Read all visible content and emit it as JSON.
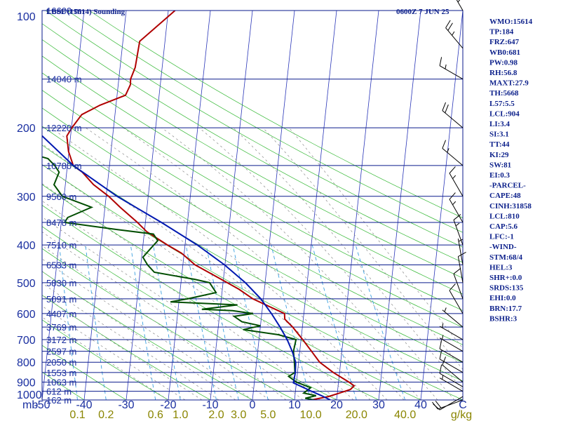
{
  "title": "LBSF (15614) Sounding",
  "valid": "0600Z  7 JUN 25",
  "colors": {
    "frame": "#0a1a8c",
    "isobar": "#0a1a8c",
    "isotherm": "#2a36b8",
    "dry_adiabat": "#33b833",
    "moist_adiabat": "#8a8a8a",
    "mixing_ratio": "#3aa0e0",
    "temperature": "#b00000",
    "dewpoint": "#004d00",
    "parcel": "#0018b0",
    "text": "#1a2fa0",
    "mix_label": "#8a8500",
    "barb": "#000000"
  },
  "axis_unit_label": "mb",
  "mix_unit_label": "g/kg",
  "chart_data": {
    "type": "line",
    "title": "LBSF (15614) Sounding",
    "subtitle": "0600Z  7 JUN 25",
    "xlabel": "",
    "ylabel": "mb",
    "xlim": [
      -50,
      50
    ],
    "ylim": [
      1000,
      100
    ],
    "y_scale": "log",
    "grid": true,
    "pressure_ticks": [
      "100",
      "200",
      "300",
      "400",
      "500",
      "600",
      "700",
      "800",
      "900",
      "1000"
    ],
    "temperature_ticks": [
      "-50",
      "-40",
      "-30",
      "-20",
      "-10",
      "0",
      "10",
      "20",
      "30",
      "40",
      "C"
    ],
    "mixing_ratio_ticks": [
      "0.1",
      "0.2",
      "0.6",
      "1.0",
      "2.0",
      "3.0",
      "5.0",
      "10.0",
      "20.0",
      "40.0",
      "g/kg"
    ],
    "height_labels": [
      {
        "p": 100,
        "label": "16600 m"
      },
      {
        "p": 150,
        "label": "14040 m"
      },
      {
        "p": 200,
        "label": "12220 m"
      },
      {
        "p": 250,
        "label": "10780 m"
      },
      {
        "p": 300,
        "label": "9560 m"
      },
      {
        "p": 350,
        "label": "8478 m"
      },
      {
        "p": 400,
        "label": "7510 m"
      },
      {
        "p": 450,
        "label": "6533 m"
      },
      {
        "p": 500,
        "label": "5830 m"
      },
      {
        "p": 550,
        "label": "5091 m"
      },
      {
        "p": 600,
        "label": "4407 m"
      },
      {
        "p": 650,
        "label": "3769 m"
      },
      {
        "p": 700,
        "label": "3172 m"
      },
      {
        "p": 750,
        "label": "2597 m"
      },
      {
        "p": 800,
        "label": "2050 m"
      },
      {
        "p": 850,
        "label": "1553 m"
      },
      {
        "p": 900,
        "label": "1063 m"
      },
      {
        "p": 950,
        "label": "612 m"
      },
      {
        "p": 1000,
        "label": "162 m"
      }
    ],
    "series": [
      {
        "key": "temperature",
        "points": [
          [
            1000,
            14.0
          ],
          [
            980,
            18.0
          ],
          [
            960,
            20.5
          ],
          [
            940,
            23.0
          ],
          [
            920,
            23.8
          ],
          [
            900,
            22.5
          ],
          [
            850,
            18.5
          ],
          [
            800,
            15.0
          ],
          [
            750,
            12.8
          ],
          [
            700,
            10.4
          ],
          [
            650,
            7.7
          ],
          [
            620,
            5.6
          ],
          [
            600,
            5.4
          ],
          [
            580,
            2.3
          ],
          [
            550,
            -2.5
          ],
          [
            520,
            -6.0
          ],
          [
            500,
            -9.0
          ],
          [
            480,
            -12.1
          ],
          [
            450,
            -17.1
          ],
          [
            420,
            -20.6
          ],
          [
            400,
            -24.2
          ],
          [
            370,
            -29.4
          ],
          [
            350,
            -31.9
          ],
          [
            320,
            -36.4
          ],
          [
            300,
            -39.4
          ],
          [
            280,
            -43.3
          ],
          [
            260,
            -46.3
          ],
          [
            250,
            -48.6
          ],
          [
            230,
            -50.1
          ],
          [
            210,
            -50.9
          ],
          [
            200,
            -49.9
          ],
          [
            185,
            -47.9
          ],
          [
            175,
            -43.8
          ],
          [
            165,
            -38.0
          ],
          [
            155,
            -37.1
          ],
          [
            150,
            -37.2
          ],
          [
            140,
            -36.4
          ],
          [
            120,
            -36.0
          ],
          [
            100,
            -28.4
          ]
        ]
      },
      {
        "key": "dewpoint",
        "points": [
          [
            1000,
            14.7
          ],
          [
            990,
            12.5
          ],
          [
            975,
            15.0
          ],
          [
            960,
            12.0
          ],
          [
            930,
            13.5
          ],
          [
            900,
            10.0
          ],
          [
            870,
            8.0
          ],
          [
            850,
            9.4
          ],
          [
            800,
            9.0
          ],
          [
            750,
            8.5
          ],
          [
            700,
            8.8
          ],
          [
            680,
            4.5
          ],
          [
            660,
            -4.0
          ],
          [
            645,
            0.0
          ],
          [
            630,
            -4.5
          ],
          [
            610,
            -6.5
          ],
          [
            600,
            -2.1
          ],
          [
            590,
            -7.0
          ],
          [
            585,
            -14.3
          ],
          [
            570,
            -6.0
          ],
          [
            560,
            -22.0
          ],
          [
            550,
            -18.0
          ],
          [
            530,
            -11.4
          ],
          [
            500,
            -13.2
          ],
          [
            490,
            -16.8
          ],
          [
            470,
            -26.6
          ],
          [
            450,
            -28.4
          ],
          [
            430,
            -29.7
          ],
          [
            410,
            -28.2
          ],
          [
            390,
            -26.6
          ],
          [
            375,
            -27.8
          ],
          [
            365,
            -36.6
          ],
          [
            350,
            -49.2
          ],
          [
            340,
            -48.6
          ],
          [
            320,
            -43.2
          ],
          [
            300,
            -50.4
          ],
          [
            280,
            -52.7
          ],
          [
            260,
            -51.8
          ],
          [
            250,
            -53.0
          ],
          [
            240,
            -54.8
          ],
          [
            225,
            -64.3
          ],
          [
            210,
            -59.9
          ],
          [
            200,
            -59.0
          ],
          [
            190,
            -62.3
          ],
          [
            180,
            -63.2
          ],
          [
            170,
            -66.1
          ],
          [
            160,
            -68.3
          ],
          [
            145,
            -65.0
          ],
          [
            130,
            -65.0
          ],
          [
            115,
            -67.0
          ],
          [
            100,
            -71.3
          ]
        ]
      },
      {
        "key": "parcel",
        "points": [
          [
            1000,
            18.5
          ],
          [
            975,
            16.3
          ],
          [
            950,
            13.8
          ],
          [
            925,
            11.4
          ],
          [
            904,
            9.3
          ],
          [
            850,
            9.5
          ],
          [
            800,
            9.3
          ],
          [
            750,
            8.2
          ],
          [
            700,
            6.7
          ],
          [
            650,
            4.7
          ],
          [
            600,
            2.3
          ],
          [
            550,
            -0.6
          ],
          [
            500,
            -4.7
          ],
          [
            450,
            -10.1
          ],
          [
            400,
            -17.1
          ],
          [
            350,
            -26.2
          ],
          [
            300,
            -37.4
          ],
          [
            250,
            -48.6
          ],
          [
            200,
            -59.0
          ],
          [
            150,
            -67.8
          ],
          [
            100,
            -73.9
          ]
        ]
      }
    ]
  },
  "wind_barbs": [
    {
      "p": 1000,
      "dir": 250,
      "spd": 20
    },
    {
      "p": 980,
      "dir": 240,
      "spd": 10
    },
    {
      "p": 950,
      "dir": 300,
      "spd": 5
    },
    {
      "p": 925,
      "dir": 300,
      "spd": 10
    },
    {
      "p": 900,
      "dir": 310,
      "spd": 10
    },
    {
      "p": 850,
      "dir": 300,
      "spd": 10
    },
    {
      "p": 800,
      "dir": 300,
      "spd": 10
    },
    {
      "p": 750,
      "dir": 300,
      "spd": 5
    },
    {
      "p": 700,
      "dir": 300,
      "spd": 5
    },
    {
      "p": 650,
      "dir": 310,
      "spd": 5
    },
    {
      "p": 600,
      "dir": 330,
      "spd": 10
    },
    {
      "p": 550,
      "dir": 340,
      "spd": 10
    },
    {
      "p": 500,
      "dir": 350,
      "spd": 10
    },
    {
      "p": 450,
      "dir": 350,
      "spd": 5
    },
    {
      "p": 400,
      "dir": 340,
      "spd": 15
    },
    {
      "p": 350,
      "dir": 330,
      "spd": 15
    },
    {
      "p": 300,
      "dir": 330,
      "spd": 15
    },
    {
      "p": 250,
      "dir": 310,
      "spd": 15
    },
    {
      "p": 200,
      "dir": 310,
      "spd": 20
    },
    {
      "p": 150,
      "dir": 300,
      "spd": 15
    },
    {
      "p": 125,
      "dir": 320,
      "spd": 25
    },
    {
      "p": 100,
      "dir": 330,
      "spd": 45
    }
  ],
  "indices": [
    "WMO:15614",
    "TP:184",
    "FRZ:647",
    "WB0:681",
    "PW:0.98",
    "RH:56.8",
    "MAXT:27.9",
    "TH:5668",
    "L57:5.5",
    "LCL:904",
    "LI:3.4",
    "SI:3.1",
    "TT:44",
    "KI:29",
    "SW:81",
    "EI:0.3",
    "-PARCEL-",
    "CAPE:48",
    "CINH:31858",
    "LCL:810",
    "CAP:5.6",
    "LFC:-1",
    "-WIND-",
    "STM:68/4",
    "HEL:3",
    "SHR+:0.0",
    "SRDS:135",
    "EHI:0.0",
    "BRN:17.7",
    "BSHR:3"
  ]
}
